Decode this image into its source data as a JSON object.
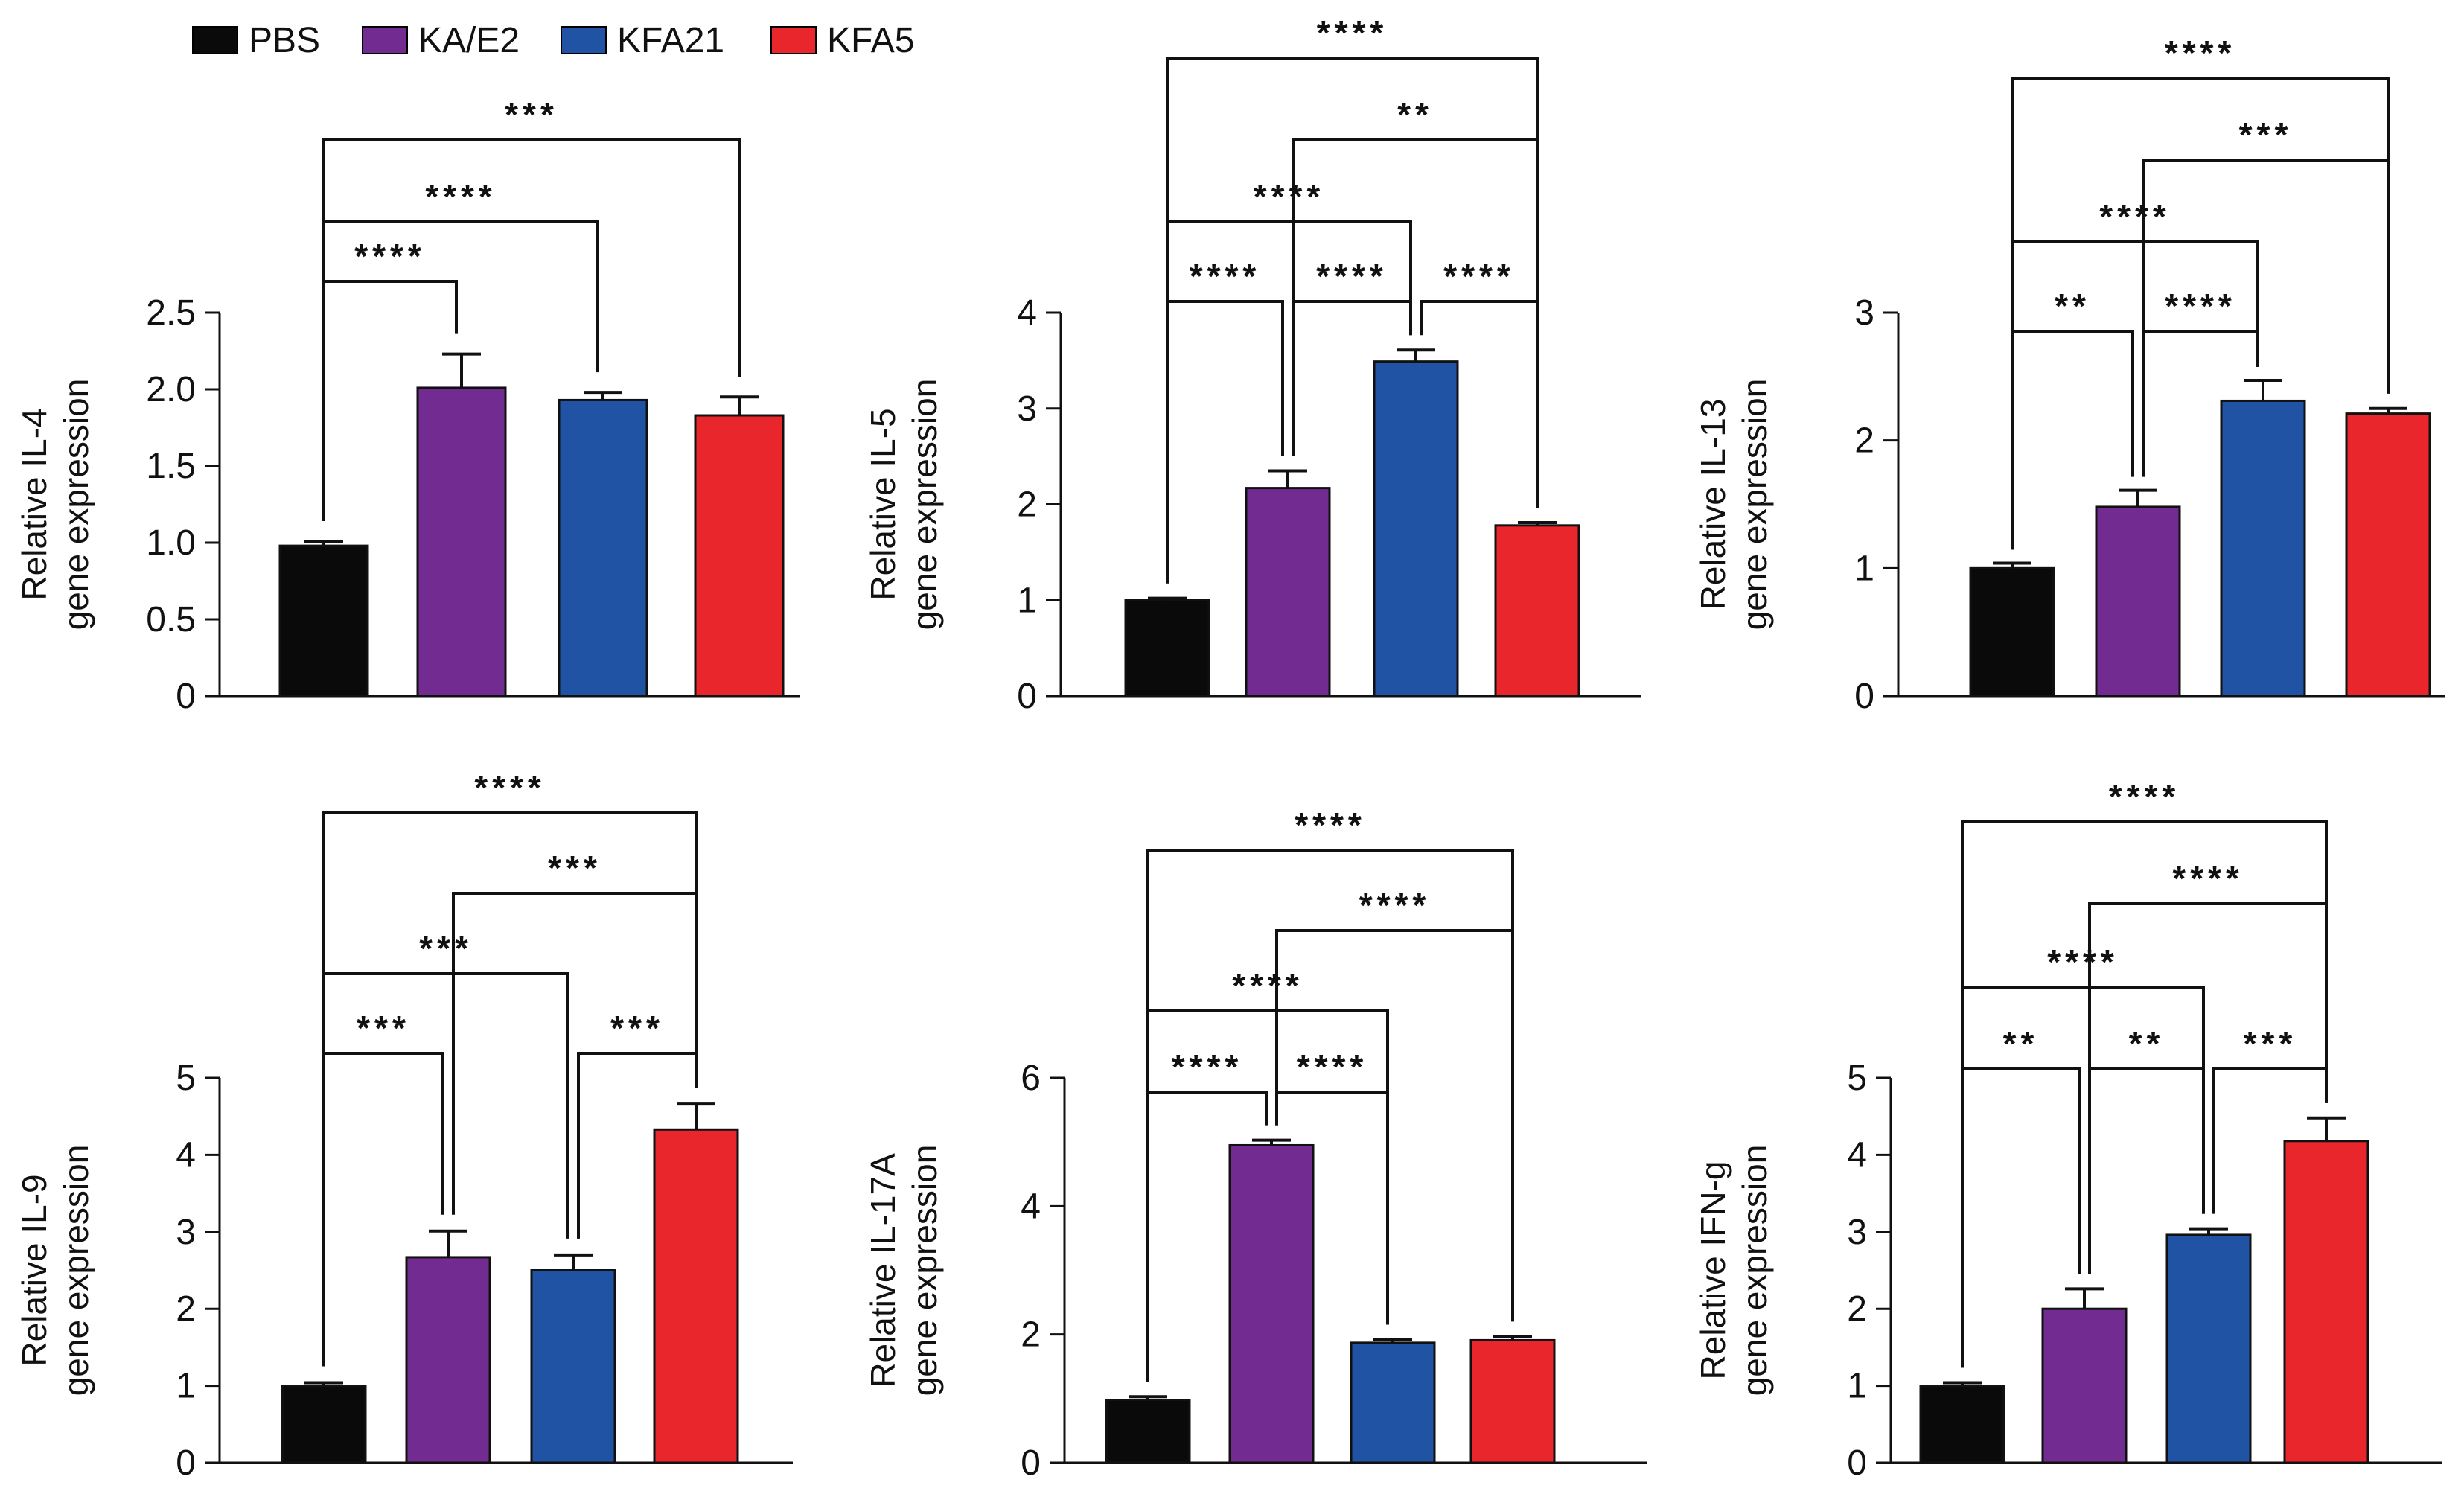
{
  "colors": {
    "PBS": "#0a0a0a",
    "KA/E2": "#722c91",
    "KFA21": "#2053a4",
    "KFA5": "#e8262b"
  },
  "legend": [
    "PBS",
    "KA/E2",
    "KFA21",
    "KFA5"
  ],
  "chart_data": [
    {
      "type": "bar",
      "ylabel_line1": "Relative IL-4",
      "ylabel_line2": "gene expression",
      "categories": [
        "PBS",
        "KA/E2",
        "KFA21",
        "KFA5"
      ],
      "values": [
        0.98,
        2.01,
        1.93,
        1.83
      ],
      "errors": [
        0.03,
        0.22,
        0.05,
        0.12
      ],
      "ylim": [
        0,
        2.5
      ],
      "yticks": [
        "0",
        "0.5",
        "1.0",
        "1.5",
        "2.0",
        "2.5"
      ],
      "brackets": [
        {
          "from": 0,
          "to": 1,
          "label": "****"
        },
        {
          "from": 0,
          "to": 2,
          "label": "****"
        },
        {
          "from": 0,
          "to": 3,
          "label": "***"
        }
      ]
    },
    {
      "type": "bar",
      "ylabel_line1": "Relative IL-5",
      "ylabel_line2": "gene expression",
      "categories": [
        "PBS",
        "KA/E2",
        "KFA21",
        "KFA5"
      ],
      "values": [
        1.0,
        2.17,
        3.49,
        1.78
      ],
      "errors": [
        0.02,
        0.18,
        0.12,
        0.03
      ],
      "ylim": [
        0,
        4
      ],
      "yticks": [
        "0",
        "1",
        "2",
        "3",
        "4"
      ],
      "brackets": [
        {
          "from": 0,
          "to": 1,
          "label": "****"
        },
        {
          "from": 1,
          "to": 2,
          "label": "****"
        },
        {
          "from": 2,
          "to": 3,
          "label": "****"
        },
        {
          "from": 0,
          "to": 2,
          "label": "****"
        },
        {
          "from": 1,
          "to": 3,
          "label": "**"
        },
        {
          "from": 0,
          "to": 3,
          "label": "****"
        }
      ]
    },
    {
      "type": "bar",
      "ylabel_line1": "Relative IL-13",
      "ylabel_line2": "gene expression",
      "categories": [
        "PBS",
        "KA/E2",
        "KFA21",
        "KFA5"
      ],
      "values": [
        1.0,
        1.48,
        2.31,
        2.21
      ],
      "errors": [
        0.04,
        0.13,
        0.16,
        0.04
      ],
      "ylim": [
        0,
        3
      ],
      "yticks": [
        "0",
        "1",
        "2",
        "3"
      ],
      "brackets": [
        {
          "from": 0,
          "to": 1,
          "label": "**"
        },
        {
          "from": 1,
          "to": 2,
          "label": "****"
        },
        {
          "from": 0,
          "to": 2,
          "label": "****"
        },
        {
          "from": 1,
          "to": 3,
          "label": "***"
        },
        {
          "from": 0,
          "to": 3,
          "label": "****"
        }
      ]
    },
    {
      "type": "bar",
      "ylabel_line1": "Relative IL-9",
      "ylabel_line2": "gene expression",
      "categories": [
        "PBS",
        "KA/E2",
        "KFA21",
        "KFA5"
      ],
      "values": [
        1.0,
        2.67,
        2.5,
        4.33
      ],
      "errors": [
        0.04,
        0.34,
        0.2,
        0.33
      ],
      "ylim": [
        0,
        5
      ],
      "yticks": [
        "0",
        "1",
        "2",
        "3",
        "4",
        "5"
      ],
      "brackets": [
        {
          "from": 0,
          "to": 1,
          "label": "***"
        },
        {
          "from": 2,
          "to": 3,
          "label": "***"
        },
        {
          "from": 0,
          "to": 2,
          "label": "***"
        },
        {
          "from": 1,
          "to": 3,
          "label": "***"
        },
        {
          "from": 0,
          "to": 3,
          "label": "****"
        }
      ]
    },
    {
      "type": "bar",
      "ylabel_line1": "Relative IL-17A",
      "ylabel_line2": "gene expression",
      "categories": [
        "PBS",
        "KA/E2",
        "KFA21",
        "KFA5"
      ],
      "values": [
        0.98,
        4.95,
        1.87,
        1.91
      ],
      "errors": [
        0.05,
        0.08,
        0.05,
        0.06
      ],
      "ylim": [
        0,
        6
      ],
      "yticks": [
        "0",
        "2",
        "4",
        "6"
      ],
      "brackets": [
        {
          "from": 0,
          "to": 1,
          "label": "****"
        },
        {
          "from": 1,
          "to": 2,
          "label": "****"
        },
        {
          "from": 0,
          "to": 2,
          "label": "****"
        },
        {
          "from": 1,
          "to": 3,
          "label": "****"
        },
        {
          "from": 0,
          "to": 3,
          "label": "****"
        }
      ]
    },
    {
      "type": "bar",
      "ylabel_line1": "Relative IFN-g",
      "ylabel_line2": "gene expression",
      "categories": [
        "PBS",
        "KA/E2",
        "KFA21",
        "KFA5"
      ],
      "values": [
        1.0,
        2.0,
        2.96,
        4.18
      ],
      "errors": [
        0.04,
        0.26,
        0.08,
        0.3
      ],
      "ylim": [
        0,
        5
      ],
      "yticks": [
        "0",
        "1",
        "2",
        "3",
        "4",
        "5"
      ],
      "brackets": [
        {
          "from": 0,
          "to": 1,
          "label": "**"
        },
        {
          "from": 1,
          "to": 2,
          "label": "**"
        },
        {
          "from": 2,
          "to": 3,
          "label": "***"
        },
        {
          "from": 0,
          "to": 2,
          "label": "****"
        },
        {
          "from": 1,
          "to": 3,
          "label": "****"
        },
        {
          "from": 0,
          "to": 3,
          "label": "****"
        }
      ]
    }
  ]
}
